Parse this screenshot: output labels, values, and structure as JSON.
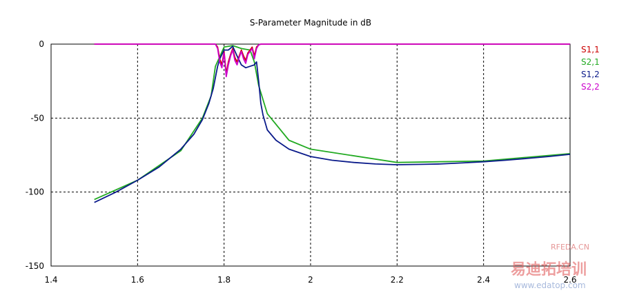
{
  "chart_data": {
    "type": "line",
    "title": "S-Parameter Magnitude in dB",
    "xlabel": "",
    "ylabel": "",
    "xlim": [
      1.4,
      2.6
    ],
    "ylim": [
      -150,
      0
    ],
    "x_ticks": [
      "1.4",
      "1.6",
      "1.8",
      "2",
      "2.2",
      "2.4",
      "2.6"
    ],
    "y_ticks": [
      "0",
      "-50",
      "-100",
      "-150"
    ],
    "grid": "dashed",
    "legend_position": "right",
    "series": [
      {
        "name": "S1,1",
        "color": "#cc0000",
        "x": [
          1.5,
          1.78,
          1.785,
          1.79,
          1.795,
          1.8,
          1.805,
          1.81,
          1.815,
          1.82,
          1.825,
          1.83,
          1.835,
          1.84,
          1.845,
          1.85,
          1.855,
          1.86,
          1.865,
          1.87,
          1.875,
          1.88,
          1.885,
          2.0,
          2.6
        ],
        "y": [
          0,
          0,
          -2,
          -10,
          -14,
          -5,
          -20,
          -12,
          -7,
          -3,
          -9,
          -12,
          -8,
          -4,
          -8,
          -11,
          -6,
          -4,
          -2,
          -8,
          -2,
          -0.5,
          0,
          0,
          0
        ]
      },
      {
        "name": "S2,1",
        "color": "#22aa22",
        "x": [
          1.5,
          1.6,
          1.7,
          1.75,
          1.77,
          1.78,
          1.8,
          1.82,
          1.84,
          1.86,
          1.87,
          1.88,
          1.9,
          1.95,
          2.0,
          2.2,
          2.4,
          2.6
        ],
        "y": [
          -105,
          -92,
          -72,
          -50,
          -35,
          -15,
          -2,
          -1,
          -3,
          -4,
          -12,
          -28,
          -47,
          -65,
          -71,
          -80,
          -79,
          -74
        ]
      },
      {
        "name": "S1,2",
        "color": "#0a1a8a",
        "x": [
          1.5,
          1.55,
          1.6,
          1.65,
          1.7,
          1.73,
          1.75,
          1.765,
          1.775,
          1.785,
          1.79,
          1.8,
          1.81,
          1.82,
          1.83,
          1.84,
          1.85,
          1.86,
          1.87,
          1.875,
          1.88,
          1.885,
          1.89,
          1.9,
          1.92,
          1.95,
          2.0,
          2.05,
          2.1,
          2.15,
          2.2,
          2.25,
          2.3,
          2.35,
          2.4,
          2.45,
          2.5,
          2.55,
          2.6
        ],
        "y": [
          -107,
          -100,
          -92,
          -83,
          -71,
          -61,
          -51,
          -40,
          -30,
          -15,
          -10,
          -4,
          -4,
          -1.5,
          -8,
          -14,
          -16,
          -15,
          -14,
          -12,
          -25,
          -40,
          -48,
          -58,
          -65,
          -71,
          -76,
          -78.5,
          -80,
          -81,
          -81.5,
          -81.3,
          -81,
          -80.3,
          -79.5,
          -78.5,
          -77.3,
          -76,
          -74.5
        ]
      },
      {
        "name": "S2,2",
        "color": "#cc00cc",
        "x": [
          1.5,
          1.78,
          1.785,
          1.79,
          1.795,
          1.8,
          1.805,
          1.81,
          1.815,
          1.82,
          1.825,
          1.83,
          1.835,
          1.84,
          1.845,
          1.85,
          1.855,
          1.86,
          1.865,
          1.87,
          1.875,
          1.88,
          1.885,
          2.0,
          2.6
        ],
        "y": [
          0,
          0,
          -3,
          -12,
          -16,
          -6,
          -22,
          -14,
          -8,
          -4,
          -11,
          -14,
          -9,
          -5,
          -10,
          -13,
          -7,
          -5,
          -3,
          -10,
          -3,
          -0.5,
          0,
          0,
          0
        ]
      }
    ]
  },
  "watermark": {
    "line1": "RFEDA.CN",
    "line2": "易迪拓培训",
    "line3": "www.edatop.com"
  }
}
